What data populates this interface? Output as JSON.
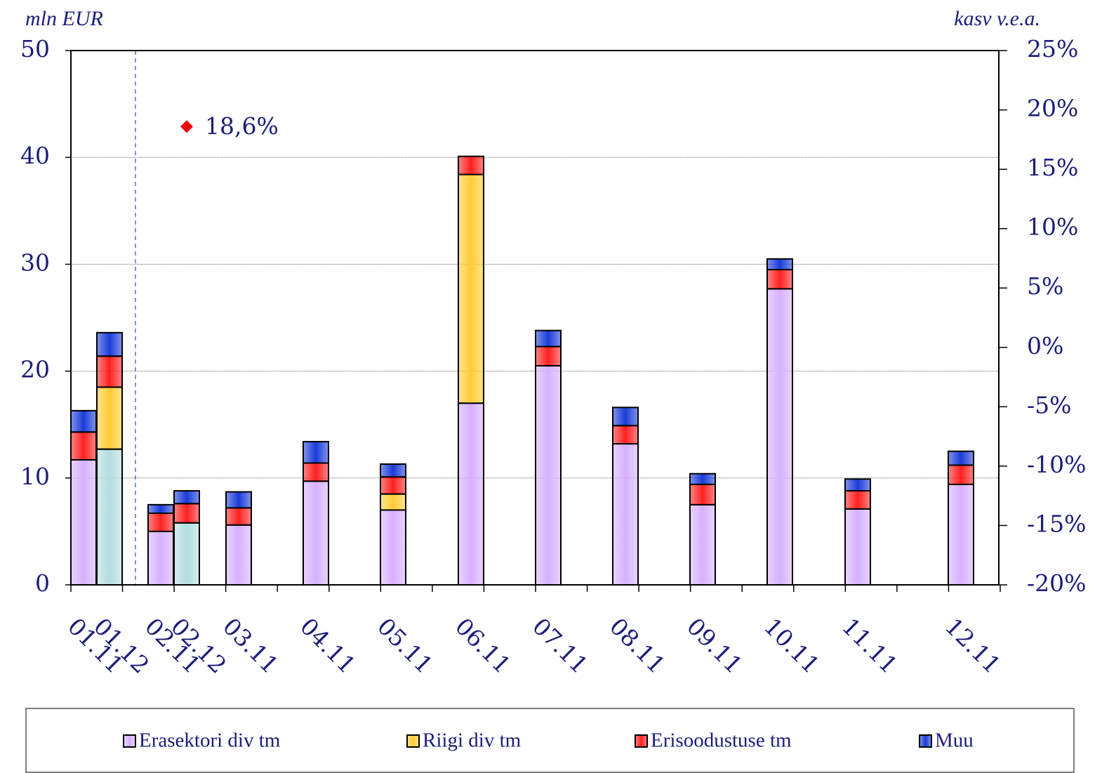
{
  "chart_data": {
    "type": "stacked_bar",
    "y_title": "mln EUR",
    "y2_title": "kasv  v.e.a.",
    "categories": [
      "01.11",
      "01.12",
      "02.11",
      "02.12",
      "03.11",
      "04.11",
      "05.11",
      "06.11",
      "07.11",
      "08.11",
      "09.11",
      "10.11",
      "11.11",
      "12.11"
    ],
    "series": [
      {
        "name": "Erasektori div tm",
        "color": "#d6b0ff",
        "colors": [
          "#d6b0ff",
          "#b3dde0",
          "#d6b0ff",
          "#b3dde0",
          "#d6b0ff",
          "#d6b0ff",
          "#d6b0ff",
          "#d6b0ff",
          "#d6b0ff",
          "#d6b0ff",
          "#d6b0ff",
          "#d6b0ff",
          "#d6b0ff",
          "#d6b0ff"
        ],
        "values": [
          11.7,
          12.7,
          5.0,
          5.8,
          5.6,
          9.7,
          7.0,
          17.0,
          20.5,
          13.2,
          7.5,
          27.7,
          7.1,
          9.4
        ]
      },
      {
        "name": "Riigi div tm",
        "color": "#ffcc33",
        "values": [
          0,
          5.8,
          0,
          0,
          0,
          0,
          1.5,
          21.4,
          0,
          0,
          0,
          0,
          0,
          0
        ]
      },
      {
        "name": "Erisoodustuse tm",
        "color": "#ff2020",
        "values": [
          2.6,
          2.9,
          1.7,
          1.8,
          1.6,
          1.7,
          1.6,
          1.7,
          1.8,
          1.7,
          1.9,
          1.8,
          1.7,
          1.8
        ]
      },
      {
        "name": "Muu",
        "color": "#1a3cd8",
        "values": [
          2.0,
          2.2,
          0.8,
          1.2,
          1.5,
          2.0,
          1.2,
          0,
          1.5,
          1.7,
          1.0,
          1.0,
          1.1,
          1.3
        ]
      }
    ],
    "ylim": [
      0,
      50
    ],
    "yticks": [
      0,
      10,
      20,
      30,
      40,
      50
    ],
    "y2lim": [
      -20,
      25
    ],
    "y2ticks": [
      {
        "value": -20,
        "label": "-20%"
      },
      {
        "value": -15,
        "label": "-15%"
      },
      {
        "value": -10,
        "label": "-10%"
      },
      {
        "value": -5,
        "label": "-5%"
      },
      {
        "value": 0,
        "label": "0%"
      },
      {
        "value": 5,
        "label": "5%"
      },
      {
        "value": 10,
        "label": "10%"
      },
      {
        "value": 15,
        "label": "15%"
      },
      {
        "value": 20,
        "label": "20%"
      },
      {
        "value": 25,
        "label": "25%"
      }
    ],
    "grid": true,
    "annotation": {
      "category": "02.12",
      "value": 18.6,
      "label": "18,6%",
      "color": "#ee0000",
      "axis": "y2"
    }
  }
}
